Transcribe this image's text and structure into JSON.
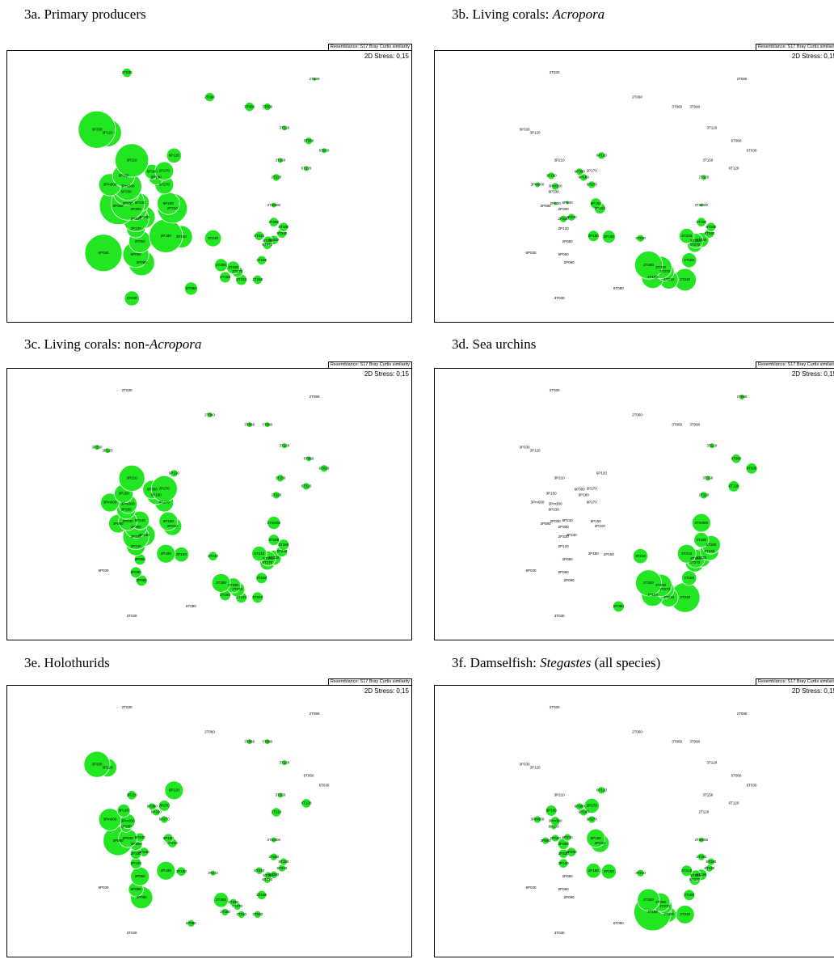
{
  "ordination": {
    "labels": [
      "2T030",
      "2T090",
      "2T060",
      "3T060",
      "3T090",
      "3P330",
      "3P120",
      "3T120",
      "6T060",
      "6T030",
      "3T150",
      "6T120",
      "2T120",
      "6P120",
      "3P210",
      "2P270",
      "3P150",
      "6P300",
      "6P180",
      "3Pm000",
      "3Pm300",
      "6P270",
      "6P330",
      "2P030",
      "6P240",
      "3P080",
      "2P300",
      "6P150",
      "2P210",
      "3Tm000",
      "2P330",
      "3P240",
      "2P120",
      "3T180",
      "6T180",
      "6T240",
      "2P180",
      "2P150",
      "3T210",
      "2P060",
      "6T210",
      "6T150",
      "6T330",
      "6T270",
      "6P030",
      "6P060",
      "2P090",
      "2T150",
      "2T300",
      "2T330",
      "2T270",
      "2T180",
      "2T210",
      "2T240",
      "6T090",
      "3T030"
    ],
    "x": [
      149,
      380,
      251,
      300,
      322,
      112,
      125,
      343,
      373,
      392,
      338,
      370,
      333,
      207,
      155,
      195,
      145,
      180,
      185,
      128,
      150,
      195,
      148,
      150,
      165,
      138,
      160,
      200,
      205,
      330,
      160,
      170,
      160,
      330,
      342,
      340,
      197,
      216,
      255,
      165,
      312,
      323,
      330,
      322,
      120,
      160,
      167,
      315,
      265,
      280,
      285,
      270,
      290,
      310,
      228,
      155
    ],
    "y": [
      307,
      299,
      277,
      265,
      265,
      237,
      233,
      239,
      223,
      211,
      199,
      189,
      178,
      205,
      199,
      186,
      180,
      185,
      178,
      169,
      167,
      169,
      160,
      146,
      147,
      143,
      139,
      146,
      140,
      144,
      127,
      129,
      115,
      123,
      117,
      109,
      106,
      105,
      103,
      99,
      106,
      100,
      101,
      95,
      85,
      83,
      73,
      76,
      70,
      67,
      62,
      55,
      52,
      52,
      41,
      29
    ]
  },
  "chart_data": [
    {
      "type": "bubble",
      "title_parts": [
        {
          "text": "3a. Primary producers",
          "italic": false
        }
      ],
      "resemblance": "Resemblance: S17 Bray Curtis similarity",
      "stress": "2D Stress: 0,15",
      "color": "#22e622",
      "sizes": [
        5,
        2,
        5,
        5,
        4,
        20,
        15,
        3,
        4,
        3,
        3,
        3,
        4,
        8,
        18,
        10,
        12,
        8,
        8,
        12,
        15,
        10,
        14,
        18,
        10,
        20,
        12,
        12,
        16,
        3,
        14,
        12,
        10,
        5,
        5,
        5,
        18,
        12,
        9,
        12,
        5,
        5,
        5,
        5,
        20,
        14,
        14,
        5,
        7,
        7,
        6,
        6,
        6,
        5,
        7,
        8
      ]
    },
    {
      "type": "bubble",
      "title_parts": [
        {
          "text": "3b. Living corals: ",
          "italic": false
        },
        {
          "text": "Acropora",
          "italic": true
        }
      ],
      "resemblance": "Resemblance: S17 Bray Curtis similarity",
      "stress": "2D Stress: 0,15",
      "color": "#22e622",
      "sizes": [
        0,
        0,
        0,
        0,
        0,
        0,
        0,
        0,
        0,
        0,
        0,
        0,
        3,
        4,
        0,
        0,
        4,
        4,
        4,
        3,
        4,
        4,
        0,
        2,
        2,
        0,
        0,
        6,
        6,
        2,
        4,
        4,
        0,
        5,
        5,
        5,
        6,
        7,
        4,
        0,
        8,
        8,
        8,
        8,
        0,
        0,
        0,
        8,
        15,
        12,
        10,
        12,
        10,
        12,
        0,
        0
      ]
    },
    {
      "type": "bubble",
      "title_parts": [
        {
          "text": "3c. Living corals: non-",
          "italic": false
        },
        {
          "text": "Acropora",
          "italic": true
        }
      ],
      "resemblance": "Resemblance: S17 Bray Curtis similarity",
      "stress": "2D Stress: 0,15",
      "color": "#22e622",
      "sizes": [
        0,
        0,
        3,
        3,
        3,
        3,
        3,
        3,
        3,
        4,
        4,
        4,
        4,
        4,
        14,
        14,
        10,
        10,
        10,
        10,
        10,
        10,
        10,
        10,
        10,
        10,
        12,
        10,
        10,
        7,
        14,
        12,
        10,
        6,
        6,
        6,
        10,
        8,
        5,
        6,
        8,
        8,
        8,
        8,
        0,
        6,
        6,
        6,
        10,
        8,
        8,
        6,
        6,
        6,
        0,
        0
      ]
    },
    {
      "type": "bubble",
      "title_parts": [
        {
          "text": "3d. Sea urchins",
          "italic": false
        }
      ],
      "resemblance": "Resemblance: S17 Bray Curtis similarity",
      "stress": "2D Stress: 0,15",
      "color": "#22e622",
      "sizes": [
        0,
        3,
        0,
        0,
        0,
        0,
        0,
        3,
        5,
        6,
        3,
        6,
        4,
        0,
        0,
        0,
        0,
        0,
        0,
        0,
        0,
        0,
        0,
        0,
        0,
        0,
        0,
        0,
        0,
        10,
        0,
        0,
        0,
        8,
        10,
        10,
        0,
        0,
        8,
        0,
        10,
        10,
        10,
        10,
        0,
        0,
        0,
        8,
        14,
        12,
        10,
        12,
        10,
        16,
        6,
        0
      ]
    },
    {
      "type": "bubble",
      "title_parts": [
        {
          "text": "3e. Holothurids",
          "italic": false
        }
      ],
      "resemblance": "Resemblance: S17 Bray Curtis similarity",
      "stress": "2D Stress: 0,15",
      "color": "#22e622",
      "sizes": [
        0,
        0,
        0,
        3,
        3,
        14,
        10,
        3,
        0,
        0,
        3,
        5,
        5,
        10,
        5,
        6,
        7,
        4,
        4,
        12,
        8,
        4,
        6,
        10,
        5,
        16,
        7,
        5,
        5,
        3,
        6,
        5,
        6,
        4,
        4,
        4,
        10,
        5,
        3,
        10,
        4,
        4,
        4,
        4,
        0,
        8,
        12,
        5,
        8,
        4,
        4,
        4,
        4,
        4,
        4,
        0
      ]
    },
    {
      "type": "bubble",
      "title_parts": [
        {
          "text": "3f. Damselfish: ",
          "italic": false
        },
        {
          "text": "Stegastes",
          "italic": true
        },
        {
          "text": " (all species)",
          "italic": false
        }
      ],
      "resemblance": "Resemblance: S17 Bray Curtis similarity",
      "stress": "2D Stress: 0,15",
      "color": "#22e622",
      "sizes": [
        0,
        0,
        0,
        0,
        0,
        0,
        0,
        0,
        0,
        0,
        0,
        0,
        0,
        4,
        0,
        8,
        6,
        4,
        4,
        4,
        5,
        4,
        3,
        4,
        4,
        4,
        6,
        10,
        10,
        3,
        5,
        5,
        5,
        4,
        4,
        4,
        8,
        8,
        4,
        0,
        6,
        6,
        6,
        6,
        0,
        0,
        0,
        6,
        12,
        10,
        8,
        20,
        8,
        10,
        0,
        0
      ]
    }
  ]
}
